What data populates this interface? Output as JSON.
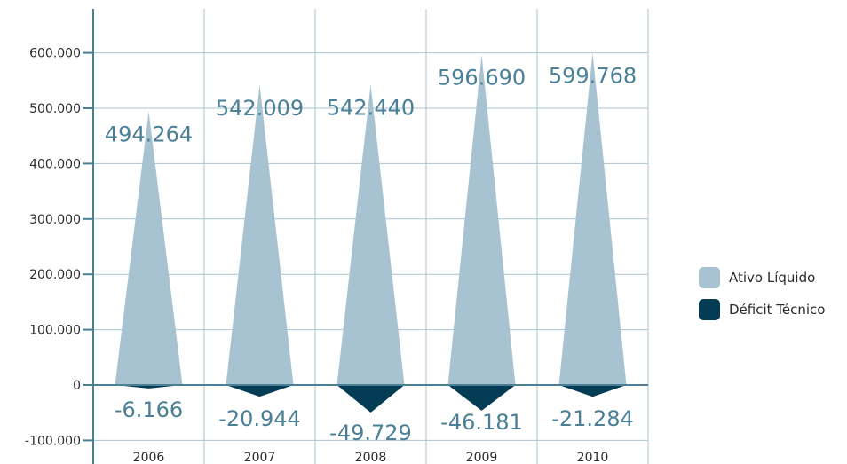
{
  "chart_data": {
    "type": "bar",
    "categories": [
      "2006",
      "2007",
      "2008",
      "2009",
      "2010"
    ],
    "series": [
      {
        "name": "Ativo Líquido",
        "color": "#a7c2d1",
        "values": [
          494264,
          542009,
          542440,
          596690,
          599768
        ],
        "labels": [
          "494.264",
          "542.009",
          "542.440",
          "596.690",
          "599.768"
        ]
      },
      {
        "name": "Déficit Técnico",
        "color": "#033c54",
        "values": [
          -6166,
          -20944,
          -49729,
          -46181,
          -21284
        ],
        "labels": [
          "-6.166",
          "-20.944",
          "-49.729",
          "-46.181",
          "-21.284"
        ]
      }
    ],
    "yticks": [
      -100000,
      0,
      100000,
      200000,
      300000,
      400000,
      500000,
      600000
    ],
    "ytick_labels": [
      "-100.000",
      "0",
      "100.000",
      "200.000",
      "300.000",
      "400.000",
      "500.000",
      "600.000"
    ],
    "ylim": [
      -115000,
      680000
    ],
    "title": "",
    "xlabel": "",
    "ylabel": "",
    "grid": true,
    "legend_position": "right",
    "axis_color": "#4a7f96",
    "grid_color": "#a9c3d0"
  }
}
